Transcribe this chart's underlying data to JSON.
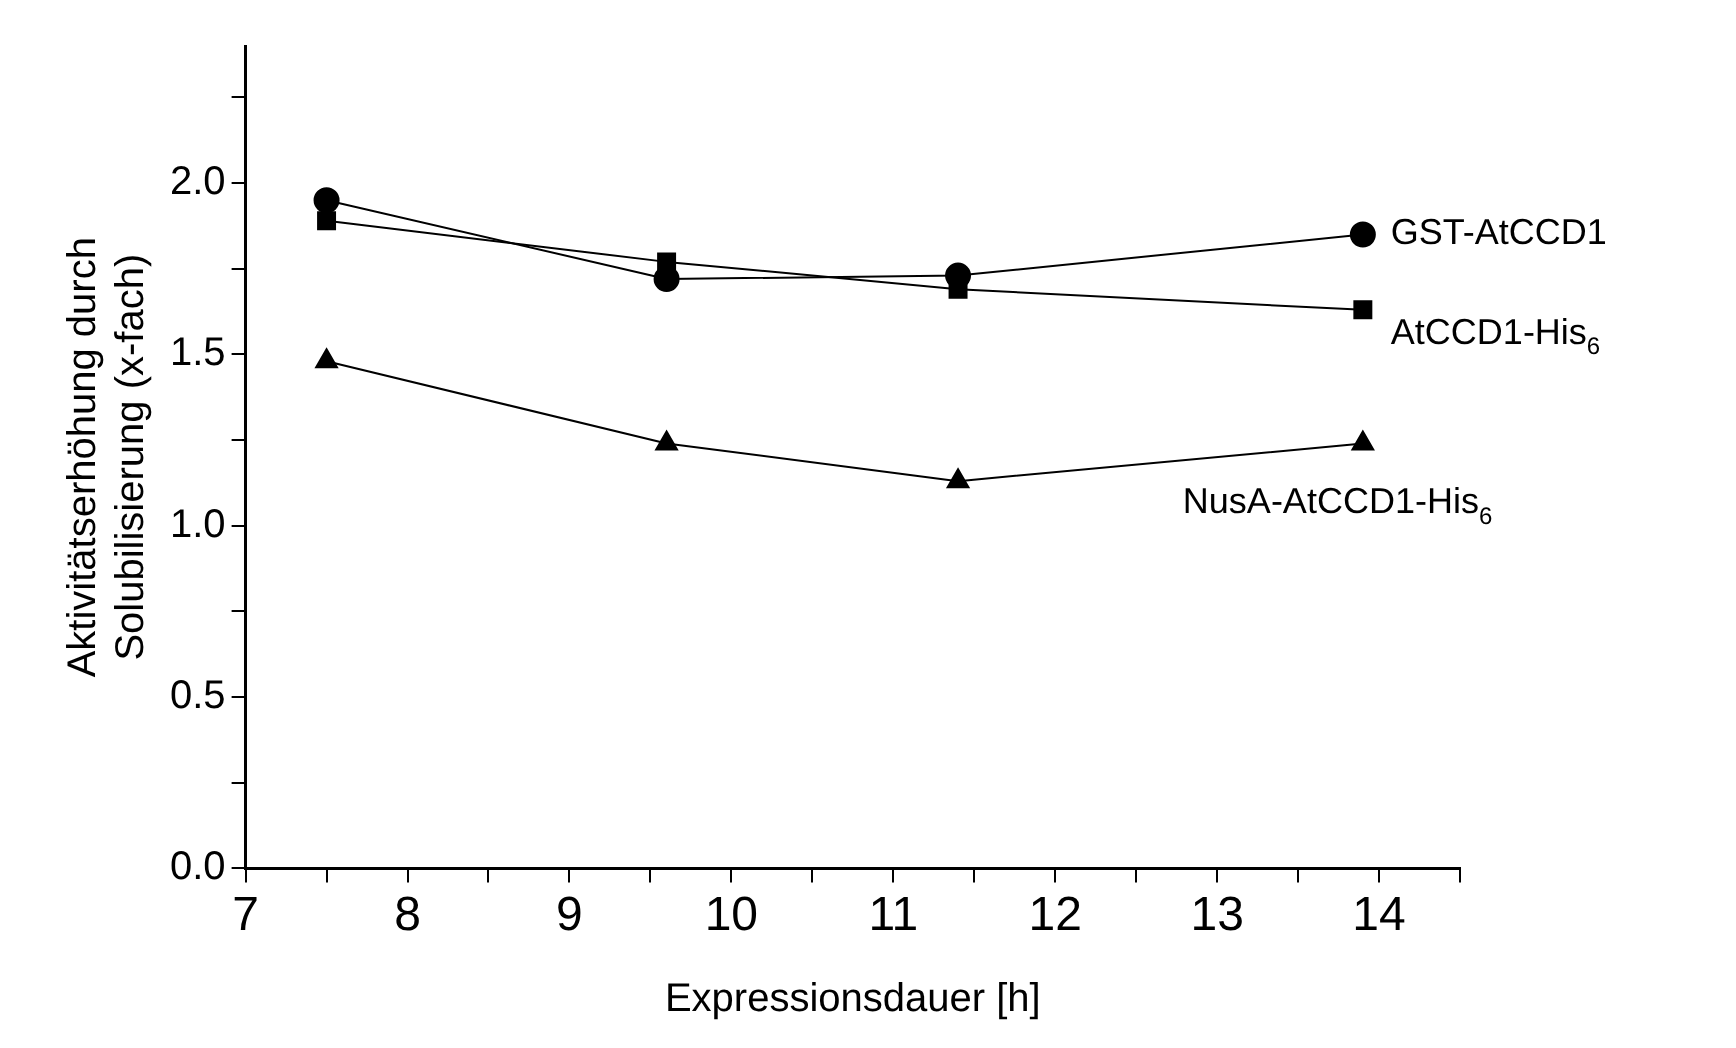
{
  "chart_data": {
    "type": "line",
    "xlabel": "Expressionsdauer [h]",
    "ylabel": "Aktivitätserhöhung durch\nSolubilisierung (x-fach)",
    "x": [
      7.5,
      9.6,
      11.4,
      13.9
    ],
    "series": [
      {
        "name": "GST-AtCCD1",
        "color": "#000000",
        "marker": "circle",
        "values": [
          1.95,
          1.72,
          1.73,
          1.85
        ]
      },
      {
        "name": "AtCCD1-His$_{6}$",
        "color": "#000000",
        "marker": "square",
        "values": [
          1.89,
          1.77,
          1.69,
          1.63
        ]
      },
      {
        "name": "NusA-AtCCD1-His$_{6}$",
        "color": "#000000",
        "marker": "triangle",
        "values": [
          1.48,
          1.24,
          1.13,
          1.24
        ]
      }
    ],
    "xlim": [
      7,
      14.5
    ],
    "xticks": [
      7,
      {
        "value": 7.5,
        "label": null
      },
      8,
      {
        "value": 8.5,
        "label": null
      },
      9,
      {
        "value": 9.5,
        "label": null
      },
      10,
      {
        "value": 10.5,
        "label": null
      },
      11,
      {
        "value": 11.5,
        "label": null
      },
      12,
      {
        "value": 12.5,
        "label": null
      },
      13,
      {
        "value": 13.5,
        "label": null
      },
      14,
      {
        "value": 14.5,
        "label": null
      }
    ],
    "ylim": [
      0,
      2.4
    ],
    "yticks": [
      {
        "value": 0,
        "label": "0.0"
      },
      {
        "value": 0.25,
        "label": null
      },
      0.5,
      {
        "value": 0.75,
        "label": null
      },
      {
        "value": 1,
        "label": "1.0"
      },
      {
        "value": 1.25,
        "label": null
      },
      1.5,
      {
        "value": 1.75,
        "label": null
      },
      {
        "value": 2,
        "label": "2.0"
      },
      {
        "value": 2.25,
        "label": null
      }
    ],
    "grid": false,
    "legend": false,
    "line_style": "solid"
  }
}
